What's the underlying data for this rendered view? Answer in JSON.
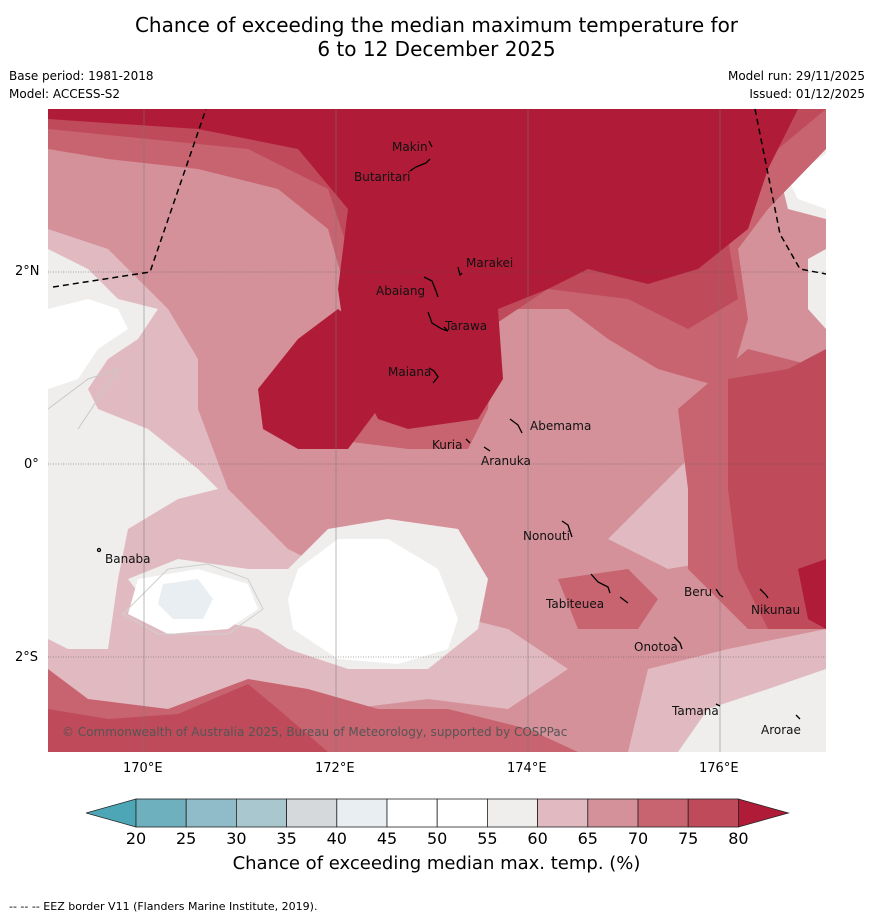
{
  "title": {
    "line1": "Chance of exceeding the median maximum temperature for",
    "line2": "6 to 12 December 2025"
  },
  "info": {
    "base_period": "Base period: 1981-2018",
    "model": "Model: ACCESS-S2",
    "model_run": "Model run: 29/11/2025",
    "issued": "Issued: 01/12/2025"
  },
  "axes": {
    "lat_labels": [
      "2°N",
      "0°",
      "2°S"
    ],
    "lon_labels": [
      "170°E",
      "172°E",
      "174°E",
      "176°E"
    ]
  },
  "places": [
    "Makin",
    "Butaritari",
    "Marakei",
    "Abaiang",
    "Tarawa",
    "Maiana",
    "Abemama",
    "Kuria",
    "Aranuka",
    "Nonouti",
    "Banaba",
    "Tabiteuea",
    "Beru",
    "Nikunau",
    "Onotoa",
    "Tamana",
    "Arorae"
  ],
  "copyright": "© Commonwealth of Australia 2025, Bureau of Meteorology, supported by COSPPac",
  "colorbar": {
    "ticks": [
      "20",
      "25",
      "30",
      "35",
      "40",
      "45",
      "50",
      "55",
      "60",
      "65",
      "70",
      "75",
      "80"
    ],
    "colors": [
      "#6fb0bf",
      "#8fbcc8",
      "#a8c7ce",
      "#d5d9dc",
      "#e8eef1",
      "#ffffff",
      "#ffffff",
      "#efeeed",
      "#e1bac1",
      "#d4919a",
      "#c86470",
      "#bf4a5a"
    ],
    "low_color": "#4ca6b5",
    "high_color": "#b01c38",
    "label": "Chance of exceeding median max. temp. (%)"
  },
  "footer": "--  --  -- EEZ border V11 (Flanders Marine Institute, 2019)."
}
